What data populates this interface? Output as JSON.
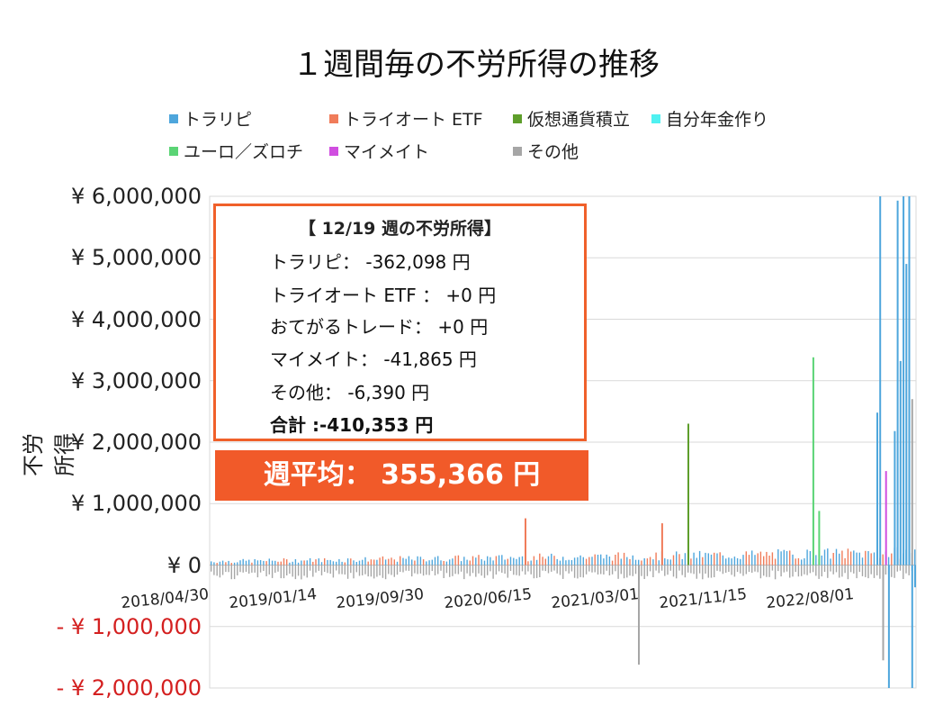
{
  "chart_data": {
    "type": "bar",
    "title": "１週間毎の不労所得の推移",
    "ylabel": "不労所得",
    "ylim": [
      -2000000,
      6000000
    ],
    "y_ticks": [
      {
        "value": 6000000,
        "label": "¥ 6,000,000"
      },
      {
        "value": 5000000,
        "label": "¥ 5,000,000"
      },
      {
        "value": 4000000,
        "label": "¥ 4,000,000"
      },
      {
        "value": 3000000,
        "label": "¥ 3,000,000"
      },
      {
        "value": 2000000,
        "label": "¥ 2,000,000"
      },
      {
        "value": 1000000,
        "label": "¥ 1,000,000"
      },
      {
        "value": 0,
        "label": "¥ 0"
      },
      {
        "value": -1000000,
        "label": "- ¥ 1,000,000"
      },
      {
        "value": -2000000,
        "label": "- ¥ 2,000,000"
      }
    ],
    "x_ticks": [
      "2018/04/30",
      "2019/01/14",
      "2019/09/30",
      "2020/06/15",
      "2021/03/01",
      "2021/11/15",
      "2022/08/01"
    ],
    "x_range": [
      "2018/04/30",
      "2022/12/19"
    ],
    "legend": [
      {
        "name": "トラリピ",
        "color": "#4ea6dc"
      },
      {
        "name": "トライオート ETF",
        "color": "#f07c5a"
      },
      {
        "name": "仮想通貨積立",
        "color": "#5e9e2b"
      },
      {
        "name": "自分年金作り",
        "color": "#4ff1f1"
      },
      {
        "name": "ユーロ／ズロチ",
        "color": "#5bd475"
      },
      {
        "name": "マイメイト",
        "color": "#d04ee0"
      },
      {
        "name": "その他",
        "color": "#a6a6a6"
      }
    ],
    "legend_position": "top",
    "grid": true,
    "series_peaks": [
      {
        "date": "2020/05/25",
        "series": "トライオート ETF",
        "value": 760000
      },
      {
        "date": "2021/02/22",
        "series": "その他",
        "value": -1620000
      },
      {
        "date": "2021/04/19",
        "series": "トライオート ETF",
        "value": 680000
      },
      {
        "date": "2021/06/21",
        "series": "仮想通貨積立",
        "value": 2300000
      },
      {
        "date": "2022/04/18",
        "series": "ユーロ／ズロチ",
        "value": 3380000
      },
      {
        "date": "2022/05/02",
        "series": "ユーロ／ズロチ",
        "value": 880000
      },
      {
        "date": "2022/09/19",
        "series": "トラリピ",
        "value": 2480000
      },
      {
        "date": "2022/09/26",
        "series": "トラリピ",
        "value": 6000000
      },
      {
        "date": "2022/10/03",
        "series": "その他",
        "value": -1550000
      },
      {
        "date": "2022/10/10",
        "series": "マイメイト",
        "value": 1530000
      },
      {
        "date": "2022/10/17",
        "series": "トラリピ",
        "value": -2000000
      },
      {
        "date": "2022/10/31",
        "series": "トラリピ",
        "value": 2180000
      },
      {
        "date": "2022/11/07",
        "series": "トラリピ",
        "value": 5930000
      },
      {
        "date": "2022/11/14",
        "series": "トラリピ",
        "value": 3320000
      },
      {
        "date": "2022/11/21",
        "series": "トラリピ",
        "value": 6000000
      },
      {
        "date": "2022/11/28",
        "series": "トラリピ",
        "value": 4900000
      },
      {
        "date": "2022/12/05",
        "series": "トラリピ",
        "value": 6000000
      },
      {
        "date": "2022/12/12",
        "series": "トラリピ",
        "value": -2000000
      },
      {
        "date": "2022/12/12",
        "series": "その他",
        "value": 2700000
      },
      {
        "date": "2022/12/19",
        "series": "トラリピ",
        "value": -362098
      }
    ]
  },
  "info_box": {
    "title": "【 12/19 週の不労所得】",
    "rows": [
      "トラリピ： -362,098 円",
      "トライオート ETF ： +0 円",
      "おてがるトレード： +0 円",
      "マイメイト： -41,865 円",
      "その他： -6,390 円"
    ],
    "total": "合計 :-410,353 円"
  },
  "average_banner": "週平均： 355,366 円"
}
